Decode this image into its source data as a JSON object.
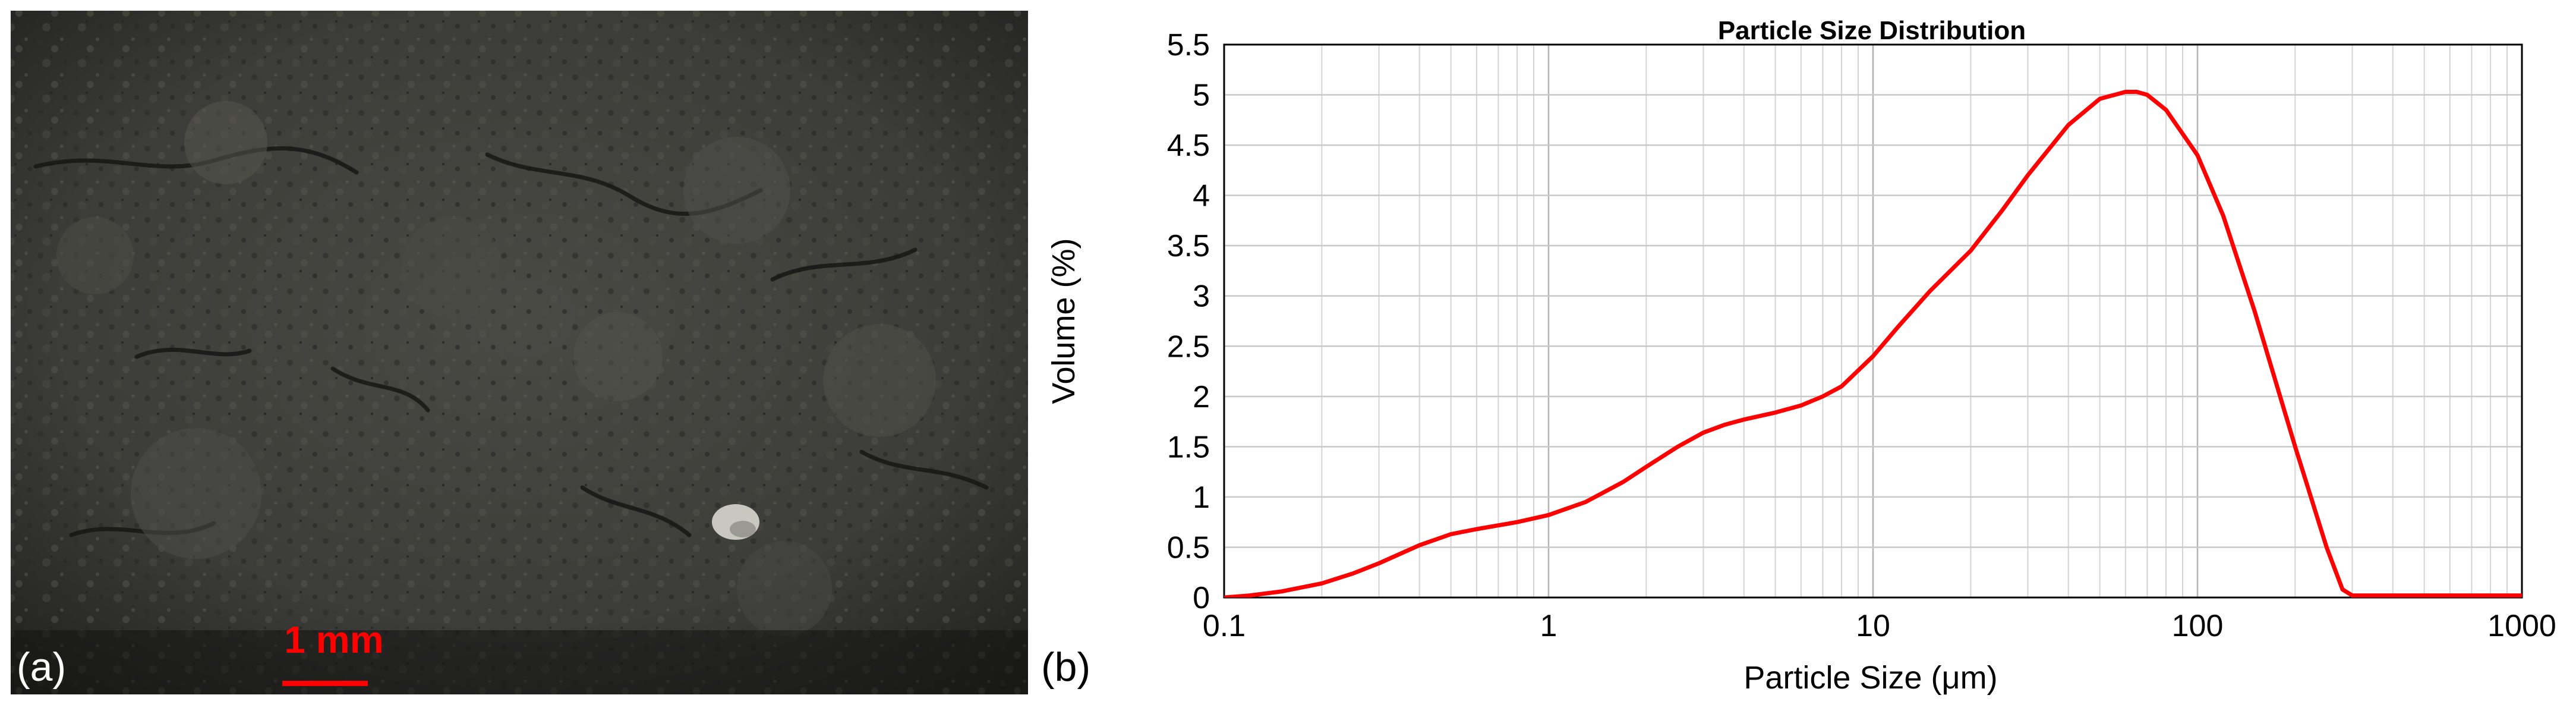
{
  "panels": {
    "a": {
      "label": "(a)",
      "scale_bar_label": "1 mm"
    },
    "b": {
      "label": "(b)"
    }
  },
  "colors": {
    "curve": "#ff0000",
    "scale_bar": "#ff0000",
    "photo_base": "#3a3a36",
    "grid": "#c8c8c8",
    "axis": "#000000"
  },
  "chart_data": {
    "type": "line",
    "title": "Particle Size Distribution",
    "xlabel": "Particle Size (μm)",
    "ylabel": "Volume (%)",
    "xscale": "log",
    "xlim": [
      0.1,
      1000
    ],
    "ylim": [
      0,
      5.5
    ],
    "xticks": [
      {
        "value": 0.1,
        "label": "0.1"
      },
      {
        "value": 1,
        "label": "1"
      },
      {
        "value": 10,
        "label": "10"
      },
      {
        "value": 100,
        "label": "100"
      },
      {
        "value": 1000,
        "label": "1000"
      }
    ],
    "yticks": [
      {
        "value": 0,
        "label": "0"
      },
      {
        "value": 0.5,
        "label": "0.5"
      },
      {
        "value": 1,
        "label": "1"
      },
      {
        "value": 1.5,
        "label": "1.5"
      },
      {
        "value": 2,
        "label": "2"
      },
      {
        "value": 2.5,
        "label": "2.5"
      },
      {
        "value": 3,
        "label": "3"
      },
      {
        "value": 3.5,
        "label": "3.5"
      },
      {
        "value": 4,
        "label": "4"
      },
      {
        "value": 4.5,
        "label": "4.5"
      },
      {
        "value": 5,
        "label": "5"
      },
      {
        "value": 5.5,
        "label": "5.5"
      }
    ],
    "grid": true,
    "series": [
      {
        "x": [
          0.1,
          0.12,
          0.15,
          0.2,
          0.25,
          0.3,
          0.4,
          0.5,
          0.6,
          0.8,
          1,
          1.3,
          1.7,
          2,
          2.5,
          3,
          3.5,
          4,
          5,
          6,
          7,
          8,
          10,
          12,
          15,
          20,
          25,
          30,
          40,
          50,
          60,
          65,
          70,
          80,
          100,
          120,
          150,
          200,
          250,
          280,
          300,
          400,
          600,
          1000
        ],
        "y": [
          0,
          0.02,
          0.06,
          0.14,
          0.24,
          0.34,
          0.52,
          0.63,
          0.68,
          0.75,
          0.82,
          0.95,
          1.15,
          1.3,
          1.5,
          1.64,
          1.72,
          1.77,
          1.84,
          1.91,
          2.0,
          2.1,
          2.4,
          2.7,
          3.05,
          3.45,
          3.85,
          4.2,
          4.7,
          4.96,
          5.03,
          5.03,
          5.0,
          4.85,
          4.4,
          3.8,
          2.85,
          1.5,
          0.5,
          0.08,
          0.02,
          0.02,
          0.02,
          0.02
        ]
      }
    ]
  }
}
